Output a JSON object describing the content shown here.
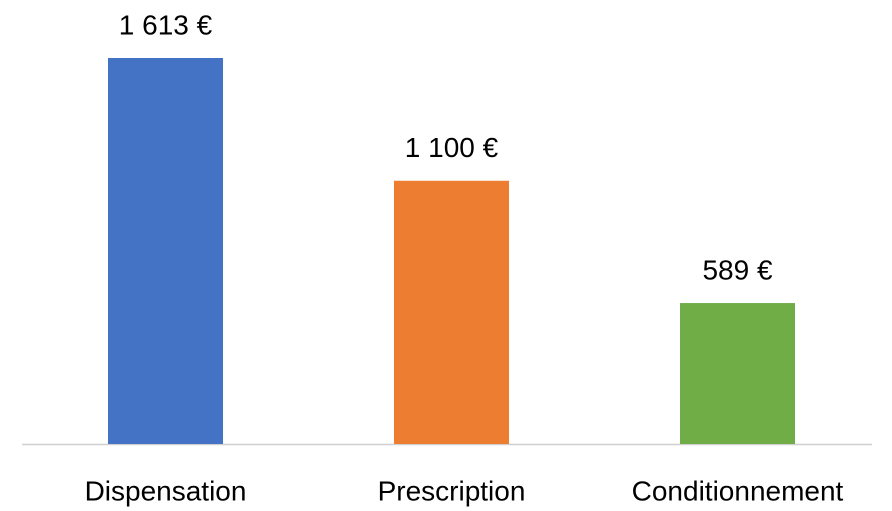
{
  "chart_data": {
    "type": "bar",
    "categories": [
      "Dispensation",
      "Prescription",
      "Conditionnement"
    ],
    "values": [
      1613,
      1100,
      589
    ],
    "value_labels": [
      "1 613 €",
      "1 100 €",
      "589 €"
    ],
    "colors": [
      "#4472c4",
      "#ed7d31",
      "#70ad47"
    ]
  }
}
